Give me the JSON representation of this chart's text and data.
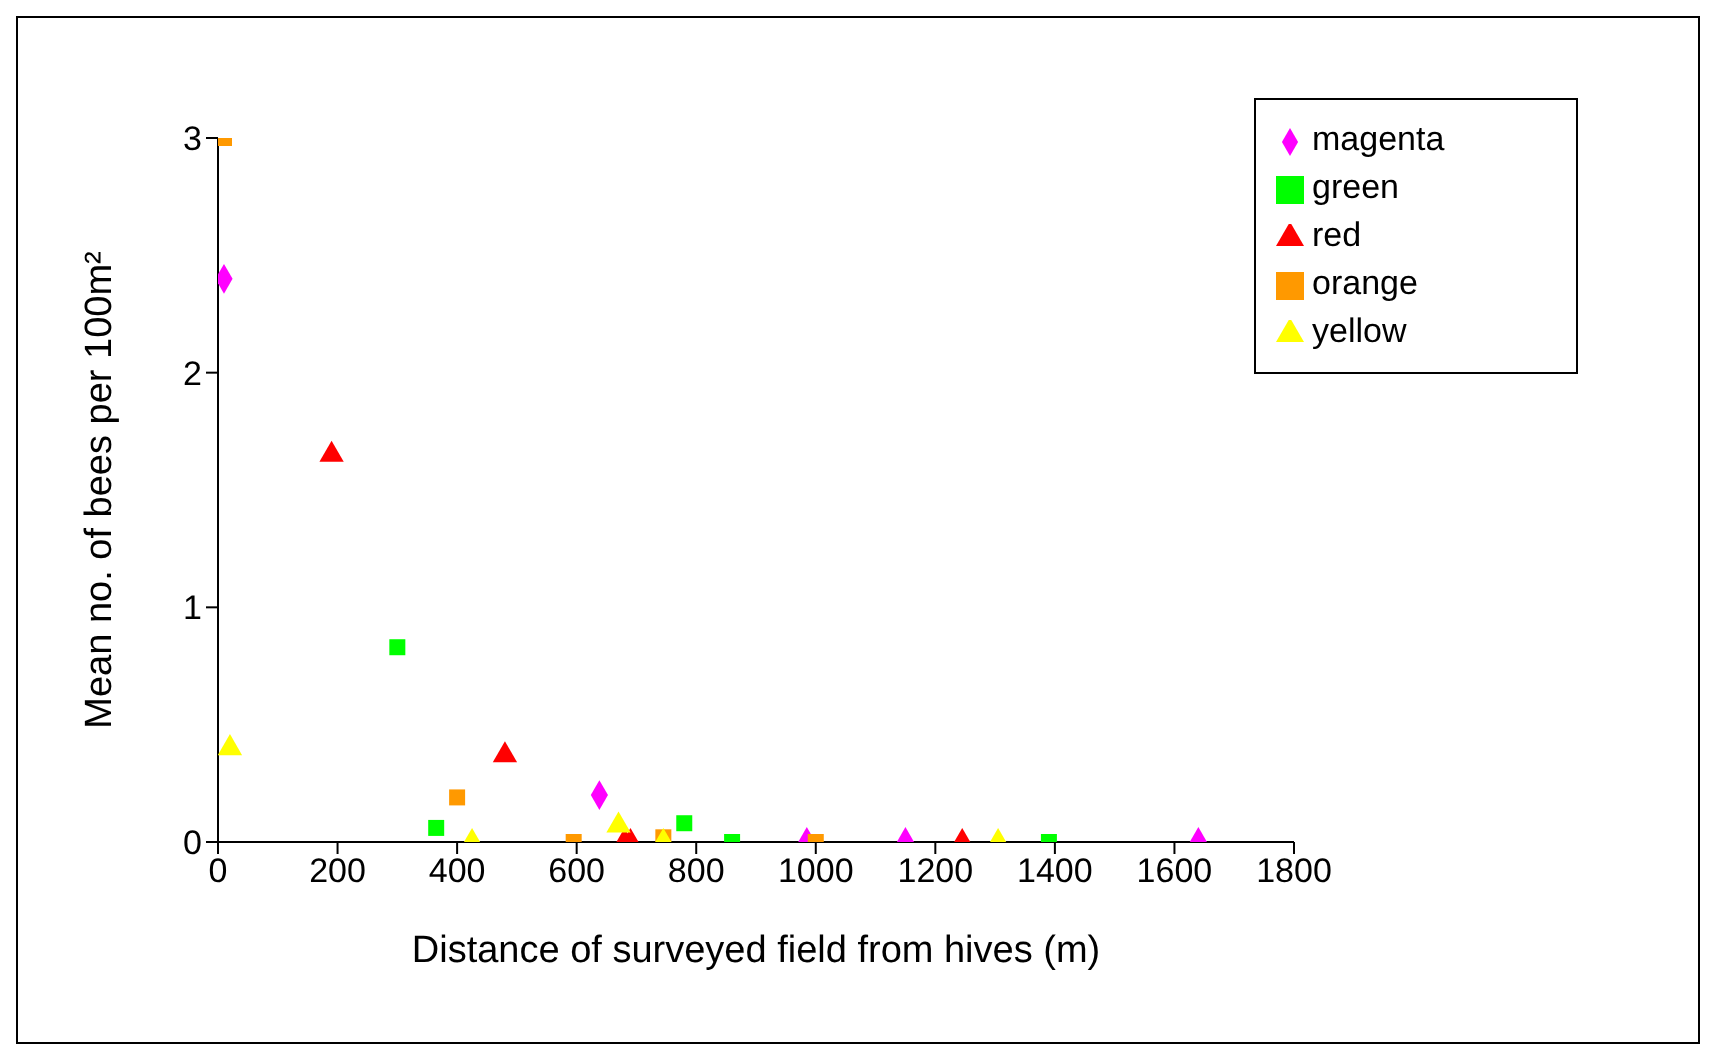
{
  "chart_data": {
    "type": "scatter",
    "xlabel": "Distance of surveyed field from hives (m)",
    "ylabel": "Mean no. of bees per 100m²",
    "xlim": [
      0,
      1800
    ],
    "xticks": [
      0,
      200,
      400,
      600,
      800,
      1000,
      1200,
      1400,
      1600,
      1800
    ],
    "ylim": [
      0,
      3
    ],
    "yticks": [
      0,
      1,
      2,
      3
    ],
    "grid": false,
    "legend": "top right",
    "series": [
      {
        "name": "magenta",
        "color": "#ff00ff",
        "marker": "diamond",
        "x": [
          10,
          638,
          985,
          1150,
          1640
        ],
        "values": [
          2.4,
          0.2,
          0,
          0,
          0
        ]
      },
      {
        "name": "green",
        "color": "#00ff00",
        "marker": "square",
        "x": [
          300,
          365,
          780,
          860,
          1390
        ],
        "values": [
          0.83,
          0.06,
          0.08,
          0,
          0
        ]
      },
      {
        "name": "red",
        "color": "#ff0000",
        "marker": "triangle",
        "x": [
          190,
          480,
          680,
          690,
          1245
        ],
        "values": [
          1.65,
          0.37,
          0,
          0,
          0
        ]
      },
      {
        "name": "orange",
        "color": "#ff9900",
        "marker": "square",
        "x": [
          10,
          400,
          595,
          745,
          1000
        ],
        "values": [
          3,
          0.19,
          0,
          0.02,
          0
        ]
      },
      {
        "name": "yellow",
        "color": "#ffff00",
        "marker": "triangle",
        "x": [
          20,
          425,
          670,
          745,
          1305
        ],
        "values": [
          0.4,
          0,
          0.07,
          0,
          0
        ]
      }
    ]
  }
}
